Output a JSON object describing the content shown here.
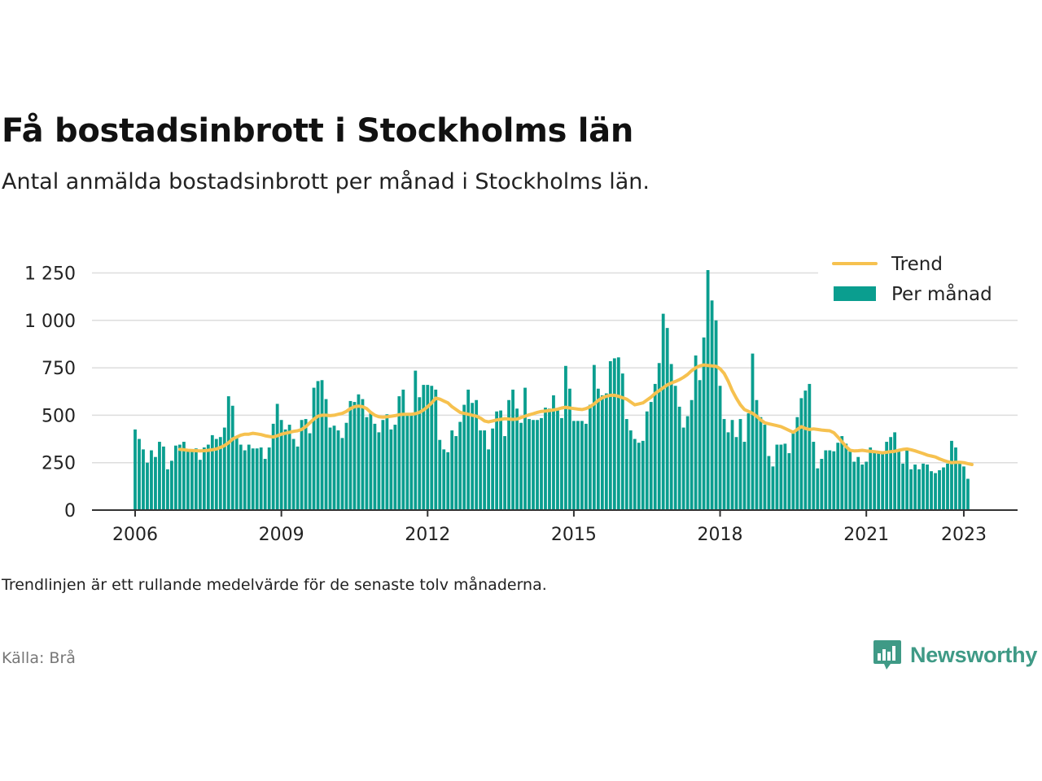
{
  "header": {
    "title": "Få bostadsinbrott i Stockholms län",
    "subtitle": "Antal anmälda bostadsinbrott per månad i Stockholms län."
  },
  "footer": {
    "note": "Trendlinjen är ett rullande medelvärde för de senaste tolv månaderna.",
    "source": "Källa: Brå",
    "brand": "Newsworthy"
  },
  "colors": {
    "bars": "#0a9e8f",
    "trend": "#f6c14f",
    "grid": "#dddddd",
    "axis": "#333333",
    "brand": "#3f9a86"
  },
  "icons": {
    "brand_logo": "bar-chart-speech-bubble-icon"
  },
  "chart_data": {
    "type": "bar",
    "x_start": "2006-01",
    "x_interval": "month",
    "yticks": [
      "0",
      "250",
      "500",
      "750",
      "1 000",
      "1 250"
    ],
    "ytick_values": [
      0,
      250,
      500,
      750,
      1000,
      1250
    ],
    "xticks": [
      "2006",
      "2009",
      "2012",
      "2015",
      "2018",
      "2021",
      "2023"
    ],
    "ylim": [
      0,
      1300
    ],
    "grid": true,
    "legend_position": "top-right",
    "series": [
      {
        "name": "Per månad",
        "type": "bar",
        "values": [
          425,
          375,
          320,
          250,
          315,
          280,
          360,
          335,
          215,
          260,
          340,
          345,
          360,
          320,
          310,
          325,
          265,
          330,
          345,
          395,
          375,
          385,
          435,
          600,
          550,
          380,
          345,
          315,
          345,
          325,
          325,
          330,
          270,
          330,
          455,
          560,
          475,
          425,
          450,
          375,
          335,
          475,
          480,
          405,
          645,
          680,
          685,
          585,
          435,
          445,
          420,
          380,
          460,
          575,
          570,
          610,
          585,
          490,
          515,
          455,
          410,
          475,
          505,
          425,
          450,
          600,
          635,
          500,
          505,
          735,
          595,
          660,
          660,
          655,
          635,
          370,
          320,
          305,
          420,
          390,
          465,
          555,
          635,
          565,
          580,
          420,
          420,
          320,
          430,
          520,
          525,
          390,
          580,
          635,
          535,
          460,
          645,
          480,
          475,
          475,
          485,
          540,
          535,
          605,
          525,
          485,
          760,
          640,
          470,
          470,
          470,
          455,
          555,
          765,
          640,
          605,
          615,
          785,
          800,
          805,
          720,
          480,
          420,
          375,
          355,
          365,
          520,
          570,
          665,
          775,
          1035,
          960,
          770,
          655,
          545,
          435,
          495,
          580,
          815,
          685,
          910,
          1265,
          1105,
          1000,
          655,
          480,
          410,
          475,
          385,
          480,
          360,
          510,
          825,
          580,
          490,
          450,
          285,
          230,
          345,
          345,
          350,
          300,
          420,
          490,
          590,
          630,
          665,
          360,
          220,
          270,
          315,
          315,
          310,
          355,
          390,
          350,
          310,
          255,
          280,
          240,
          255,
          330,
          305,
          305,
          305,
          360,
          385,
          410,
          310,
          245,
          320,
          215,
          240,
          215,
          245,
          240,
          205,
          195,
          210,
          225,
          245,
          365,
          330,
          255,
          230,
          165
        ]
      },
      {
        "name": "Trend",
        "type": "line",
        "values": [
          null,
          null,
          null,
          null,
          null,
          null,
          null,
          null,
          null,
          null,
          null,
          320,
          318,
          315,
          314,
          313,
          312,
          313,
          315,
          318,
          322,
          330,
          340,
          355,
          375,
          385,
          395,
          400,
          400,
          405,
          402,
          398,
          392,
          388,
          385,
          392,
          400,
          405,
          410,
          415,
          418,
          425,
          440,
          460,
          480,
          495,
          500,
          500,
          498,
          500,
          505,
          510,
          520,
          535,
          545,
          548,
          545,
          535,
          515,
          500,
          492,
          490,
          492,
          495,
          498,
          503,
          505,
          505,
          505,
          508,
          515,
          528,
          545,
          565,
          590,
          585,
          575,
          565,
          545,
          530,
          515,
          510,
          505,
          500,
          495,
          485,
          470,
          465,
          470,
          475,
          478,
          482,
          480,
          478,
          480,
          488,
          495,
          502,
          508,
          515,
          520,
          522,
          525,
          528,
          532,
          538,
          542,
          538,
          535,
          532,
          530,
          535,
          545,
          560,
          578,
          592,
          600,
          605,
          605,
          600,
          592,
          585,
          570,
          555,
          560,
          565,
          580,
          595,
          615,
          630,
          645,
          660,
          670,
          678,
          688,
          700,
          715,
          735,
          750,
          760,
          765,
          762,
          760,
          758,
          745,
          720,
          680,
          630,
          590,
          555,
          530,
          520,
          510,
          495,
          475,
          460,
          455,
          450,
          445,
          440,
          430,
          420,
          410,
          425,
          440,
          430,
          425,
          428,
          425,
          422,
          420,
          418,
          408,
          385,
          360,
          335,
          315,
          312,
          313,
          315,
          312,
          310,
          308,
          305,
          302,
          305,
          308,
          310,
          315,
          320,
          322,
          318,
          312,
          305,
          298,
          290,
          285,
          280,
          270,
          262,
          255,
          250,
          252,
          252,
          250,
          245,
          240
        ]
      }
    ]
  }
}
